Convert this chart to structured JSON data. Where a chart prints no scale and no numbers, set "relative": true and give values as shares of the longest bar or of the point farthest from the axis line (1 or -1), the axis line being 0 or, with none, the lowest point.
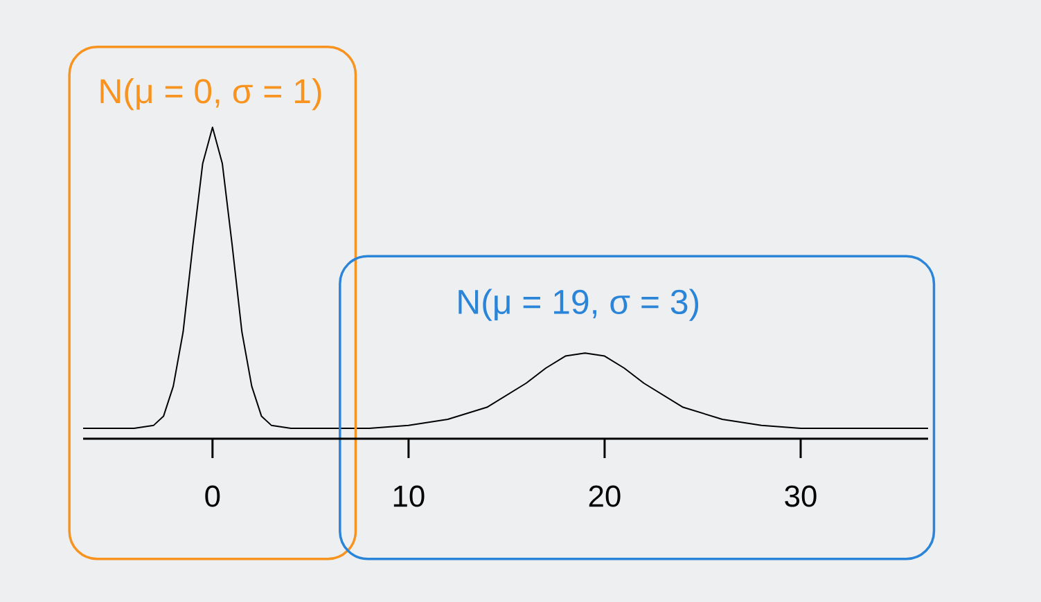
{
  "chart_data": {
    "type": "line",
    "relative": true,
    "color": "#000000",
    "marker": "none",
    "line_style": "solid",
    "grid": false,
    "x": [
      -6.6,
      -4,
      -3,
      -2.5,
      -2,
      -1.5,
      -1,
      -0.5,
      0,
      0.5,
      1,
      1.5,
      2,
      2.5,
      3,
      4,
      6,
      8,
      10,
      12,
      14,
      16,
      17,
      18,
      19,
      20,
      21,
      22,
      24,
      26,
      28,
      30,
      32,
      36.5
    ],
    "values": [
      0,
      0,
      0.01,
      0.04,
      0.14,
      0.32,
      0.61,
      0.88,
      1,
      0.88,
      0.61,
      0.32,
      0.14,
      0.04,
      0.01,
      0,
      0,
      0,
      0.01,
      0.03,
      0.07,
      0.15,
      0.2,
      0.24,
      0.25,
      0.24,
      0.2,
      0.15,
      0.07,
      0.03,
      0.01,
      0,
      0,
      0
    ],
    "xlim": [
      -6.6,
      36.5
    ],
    "xticks": [
      0,
      10,
      20,
      30
    ],
    "annotations": [
      {
        "text": "N(μ = 0, σ = 1)",
        "x": 0,
        "y": 1
      },
      {
        "text": "N(μ = 19, σ = 3)",
        "x": 19,
        "y": 0.25
      }
    ]
  }
}
